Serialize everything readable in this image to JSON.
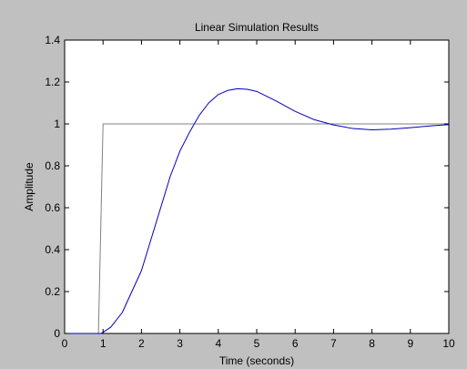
{
  "chart_data": {
    "type": "line",
    "title": "Linear Simulation Results",
    "xlabel": "Time (seconds)",
    "ylabel": "Amplitude",
    "xlim": [
      0,
      10
    ],
    "ylim": [
      0,
      1.4
    ],
    "xticks": [
      0,
      1,
      2,
      3,
      4,
      5,
      6,
      7,
      8,
      9,
      10
    ],
    "yticks": [
      0,
      0.2,
      0.4,
      0.6,
      0.8,
      1,
      1.2,
      1.4
    ],
    "grid": false,
    "legend": "none",
    "background_color": "#c0c0c0",
    "plot_background_color": "#ffffff",
    "series": [
      {
        "color": "#808080",
        "x": [
          0,
          0.88,
          1.0,
          10
        ],
        "y": [
          0,
          0,
          1.0,
          1.0
        ]
      },
      {
        "color": "#0000bb",
        "x": [
          0,
          0.95,
          1.0,
          1.2,
          1.5,
          2.0,
          2.25,
          2.5,
          2.75,
          3.0,
          3.25,
          3.5,
          3.75,
          4.0,
          4.25,
          4.5,
          4.75,
          5.0,
          5.5,
          6.0,
          6.5,
          7.0,
          7.5,
          8.0,
          8.5,
          9.0,
          9.5,
          10.0
        ],
        "y": [
          0,
          0,
          0.005,
          0.03,
          0.1,
          0.3,
          0.45,
          0.6,
          0.75,
          0.87,
          0.96,
          1.04,
          1.1,
          1.14,
          1.16,
          1.168,
          1.165,
          1.155,
          1.11,
          1.06,
          1.02,
          0.995,
          0.978,
          0.972,
          0.975,
          0.982,
          0.99,
          0.997
        ]
      }
    ]
  }
}
